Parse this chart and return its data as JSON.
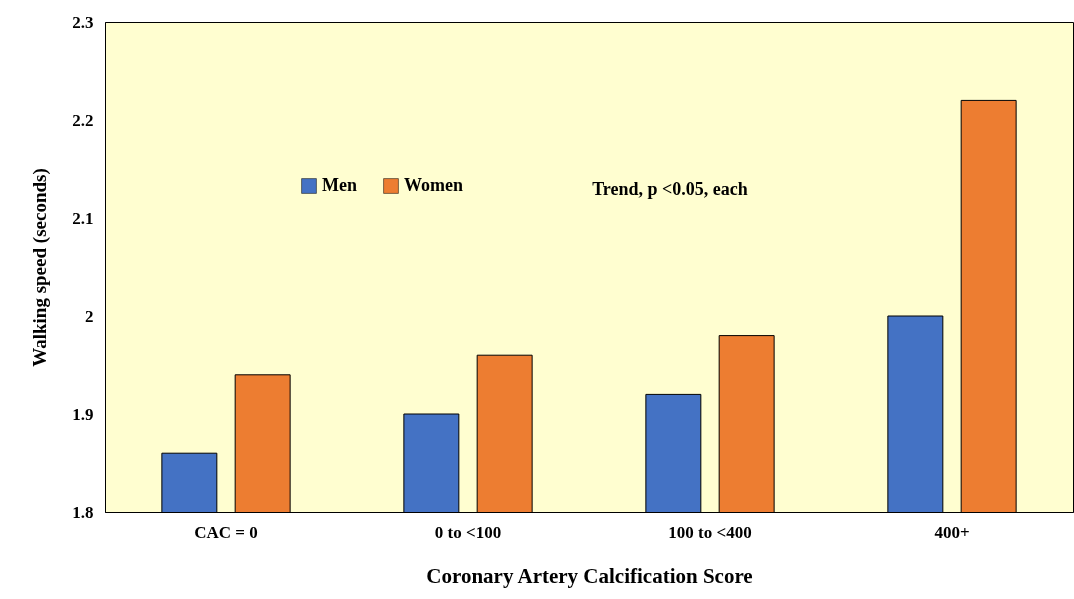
{
  "chart_data": {
    "type": "bar",
    "xlabel": "Coronary Artery Calcification Score",
    "ylabel": "Walking speed (seconds)",
    "categories": [
      "CAC = 0",
      "0 to <100",
      "100 to <400",
      "400+"
    ],
    "series": [
      {
        "name": "Men",
        "color": "#4472c4",
        "values": [
          1.86,
          1.9,
          1.92,
          2.0
        ]
      },
      {
        "name": "Women",
        "color": "#ed7d31",
        "values": [
          1.94,
          1.96,
          1.98,
          2.22
        ]
      }
    ],
    "ylim": [
      1.8,
      2.3
    ],
    "yticks": [
      1.8,
      1.9,
      2,
      2.1,
      2.2,
      2.3
    ],
    "grid": false,
    "legend": "top left",
    "annotations": [
      "Trend, p <0.05, each"
    ]
  }
}
